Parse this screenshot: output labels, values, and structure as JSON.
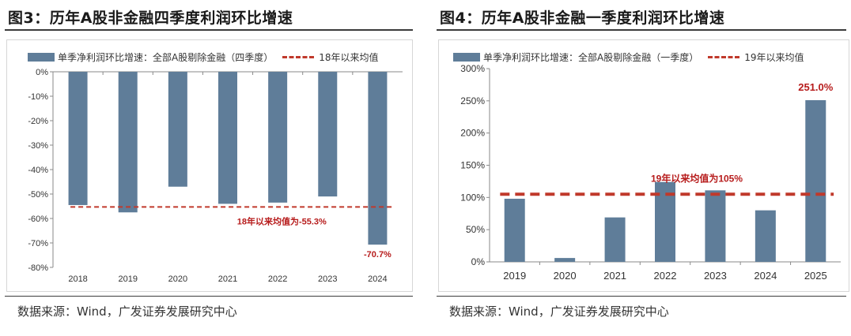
{
  "colors": {
    "bar": "#5f7d99",
    "avg_line": "#c0392b",
    "avg_label": "#b71c1c",
    "axis": "#8a8a8a",
    "text": "#333333"
  },
  "panels": [
    {
      "title": "图3：历年A股非金融四季度利润环比增速",
      "source": "数据来源：Wind，广发证券发展研究中心",
      "legend": {
        "bar_label": "单季净利润环比增速：全部A股剔除金融（四季度）",
        "line_label": "18年以来均值"
      },
      "chart_data": {
        "type": "bar",
        "categories": [
          "2018",
          "2019",
          "2020",
          "2021",
          "2022",
          "2023",
          "2024"
        ],
        "values": [
          -54.5,
          -57.5,
          -47,
          -54,
          -53.5,
          -51,
          -70.7
        ],
        "ylim": [
          -80,
          0
        ],
        "yticks": [
          "0%",
          "-10%",
          "-20%",
          "-30%",
          "-40%",
          "-50%",
          "-60%",
          "-70%",
          "-80%"
        ],
        "average": -55.3,
        "average_label": "18年以来均值为-55.3%",
        "data_labels": [
          {
            "category": "2024",
            "text": "-70.7%"
          }
        ]
      }
    },
    {
      "title": "图4：历年A股非金融一季度利润环比增速",
      "source": "数据来源：Wind，广发证券发展研究中心",
      "legend": {
        "bar_label": "单季净利润环比增速：全部A股剔除金融（一季度）",
        "line_label": "19年以来均值"
      },
      "chart_data": {
        "type": "bar",
        "categories": [
          "2019",
          "2020",
          "2021",
          "2022",
          "2023",
          "2024",
          "2025"
        ],
        "values": [
          98,
          6,
          69,
          124,
          111,
          80,
          251.0
        ],
        "ylim": [
          0,
          300
        ],
        "yticks": [
          "300%",
          "250%",
          "200%",
          "150%",
          "100%",
          "50%",
          "0%"
        ],
        "average": 105,
        "average_label": "19年以来均值为105%",
        "data_labels": [
          {
            "category": "2025",
            "text": "251.0%"
          }
        ]
      }
    }
  ]
}
